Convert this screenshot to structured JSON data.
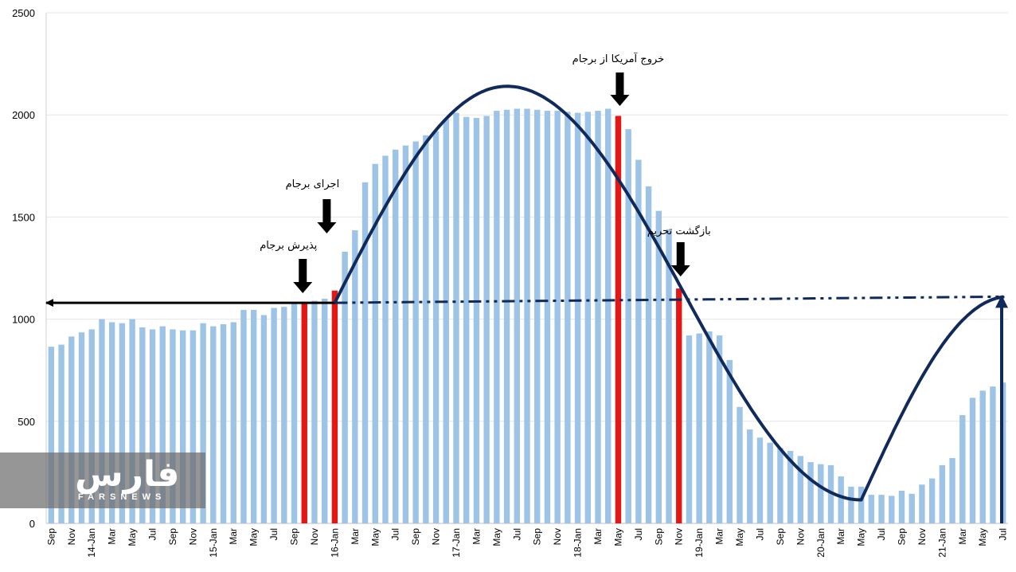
{
  "chart_data": {
    "type": "bar",
    "y_ticks": [
      "0",
      "500",
      "1000",
      "1500",
      "2000",
      "2500"
    ],
    "ylim": [
      0,
      2500
    ],
    "x_tick_labels": [
      "Sep",
      "Nov",
      "14-Jan",
      "Mar",
      "May",
      "Jul",
      "Sep",
      "Nov",
      "15-Jan",
      "Mar",
      "May",
      "Jul",
      "Sep",
      "Nov",
      "16-Jan",
      "Mar",
      "May",
      "Jul",
      "Sep",
      "Nov",
      "17-Jan",
      "Mar",
      "May",
      "Jul",
      "Sep",
      "Nov",
      "18-Jan",
      "Mar",
      "May",
      "Jul",
      "Sep",
      "Nov",
      "19-Jan",
      "Mar",
      "May",
      "Jul",
      "Sep",
      "Nov",
      "20-Jan",
      "Mar",
      "May",
      "Jul",
      "Sep",
      "Nov",
      "21-Jan",
      "Mar",
      "May",
      "Jul"
    ],
    "values": [
      865,
      875,
      915,
      935,
      950,
      1000,
      985,
      980,
      1000,
      960,
      950,
      965,
      950,
      945,
      945,
      980,
      965,
      975,
      985,
      1045,
      1045,
      1020,
      1055,
      1060,
      1075,
      1085,
      1090,
      1100,
      1140,
      1330,
      1435,
      1670,
      1760,
      1800,
      1830,
      1850,
      1870,
      1900,
      1920,
      1980,
      2010,
      1990,
      1985,
      1995,
      2020,
      2025,
      2030,
      2030,
      2025,
      2020,
      2020,
      2015,
      2010,
      2015,
      2020,
      2030,
      1995,
      1930,
      1780,
      1650,
      1530,
      1440,
      1150,
      920,
      930,
      940,
      920,
      800,
      570,
      460,
      420,
      395,
      370,
      355,
      330,
      300,
      290,
      285,
      230,
      180,
      180,
      140,
      140,
      135,
      160,
      145,
      190,
      220,
      285,
      320,
      530,
      615,
      650,
      670,
      690
    ],
    "highlighted_indices": [
      25,
      28,
      56,
      62
    ],
    "colors": {
      "bar": "#9dc3e6",
      "highlight": "#e51616",
      "curve": "#102a5c",
      "arrow": "#000000"
    },
    "sine_curve": {
      "description_hidden": true
    },
    "annotations": [
      {
        "text": "پذیرش برجام"
      },
      {
        "text": "اجرای برجام"
      },
      {
        "text": "خروج آمریکا از برجام"
      },
      {
        "text": "بازگشت تحریم"
      }
    ],
    "grid": true
  },
  "logo": {
    "word": "فارس",
    "sub": "FARSNEWS"
  }
}
